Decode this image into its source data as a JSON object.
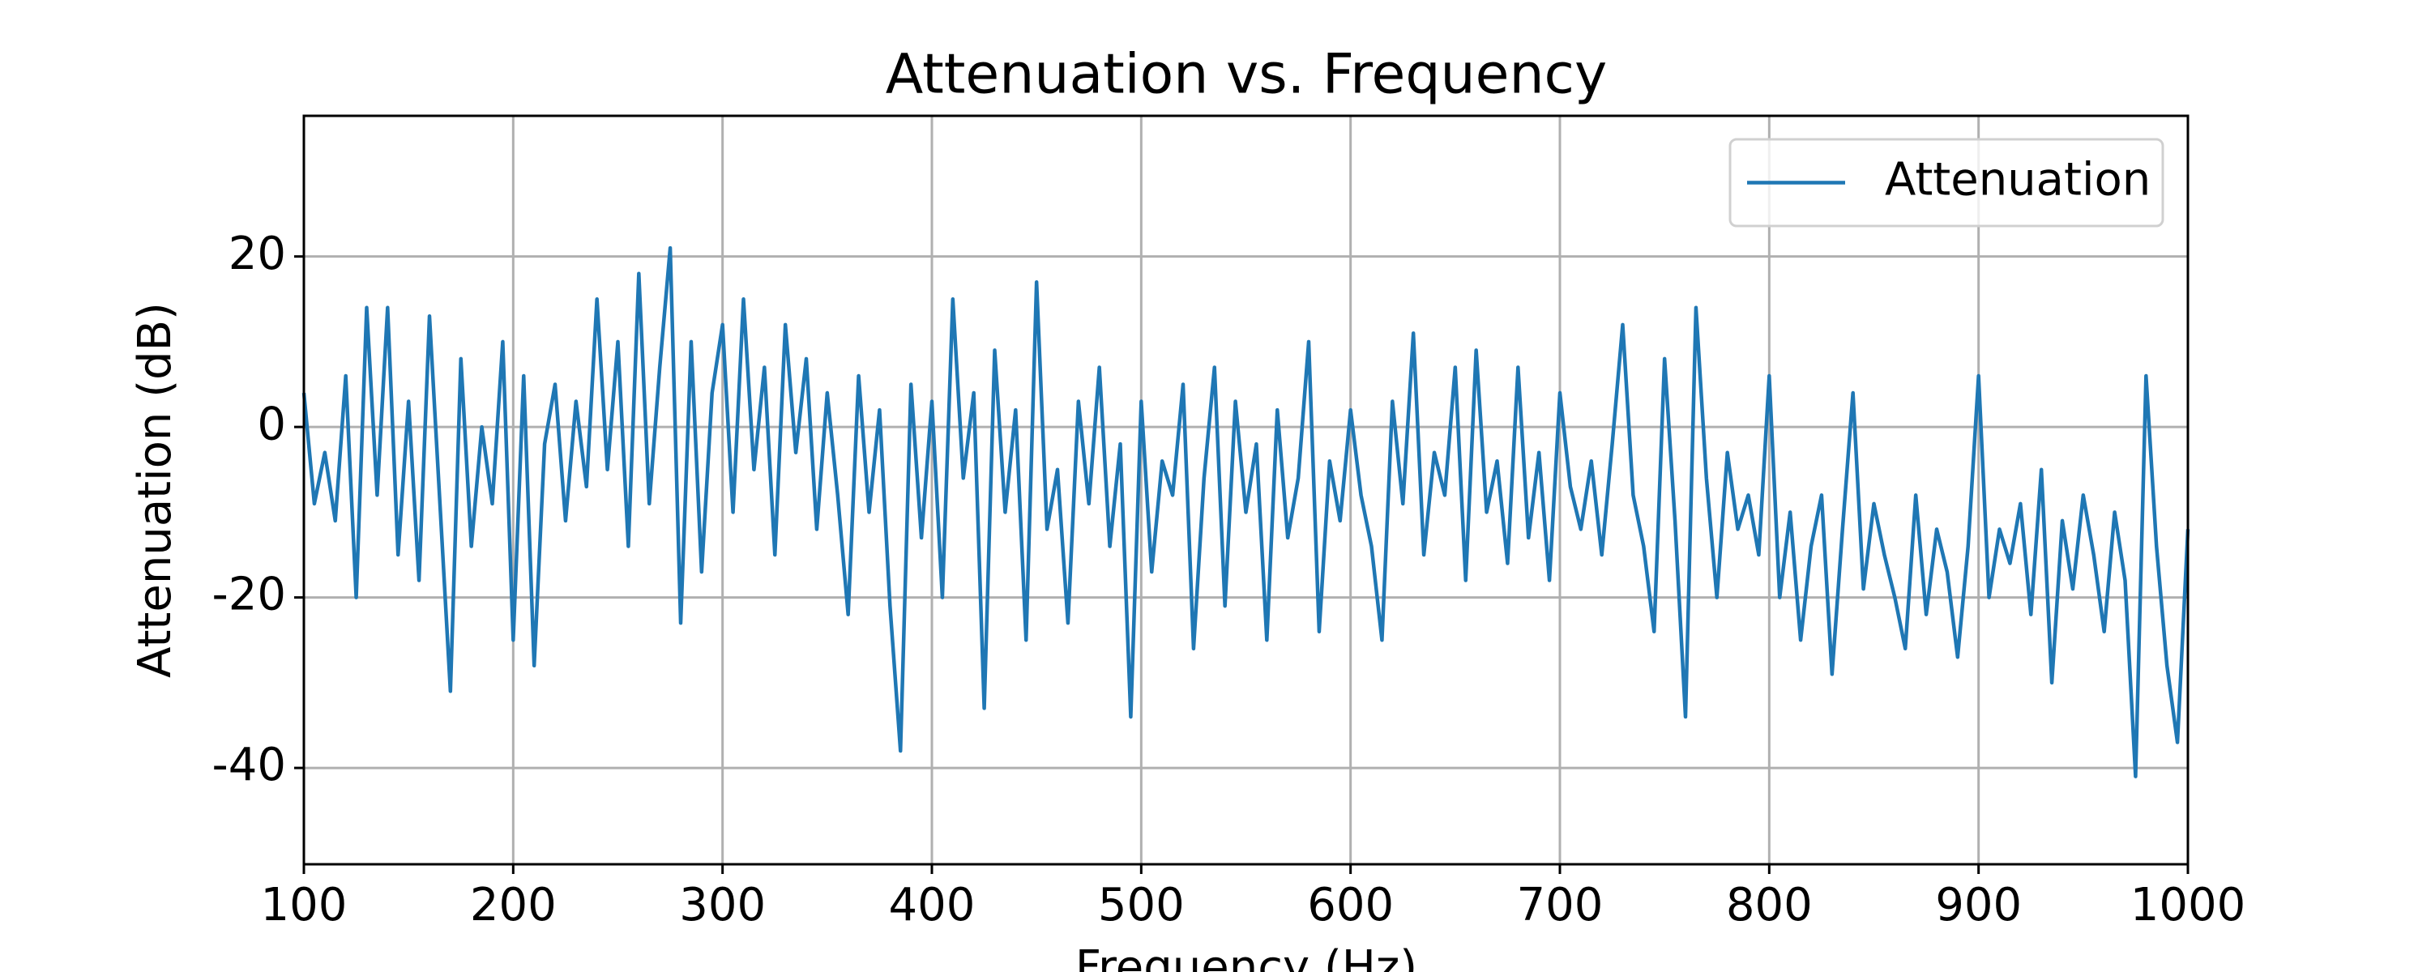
{
  "chart_data": {
    "type": "line",
    "title": "Attenuation vs. Frequency",
    "x_label": "Frequency (Hz)",
    "y_label": "Attenuation (dB)",
    "x": [
      100,
      105,
      110,
      115,
      120,
      125,
      130,
      135,
      140,
      145,
      150,
      155,
      160,
      165,
      170,
      175,
      180,
      185,
      190,
      195,
      200,
      205,
      210,
      215,
      220,
      225,
      230,
      235,
      240,
      245,
      250,
      255,
      260,
      265,
      270,
      275,
      280,
      285,
      290,
      295,
      300,
      305,
      310,
      315,
      320,
      325,
      330,
      335,
      340,
      345,
      350,
      355,
      360,
      365,
      370,
      375,
      380,
      385,
      390,
      395,
      400,
      405,
      410,
      415,
      420,
      425,
      430,
      435,
      440,
      445,
      450,
      455,
      460,
      465,
      470,
      475,
      480,
      485,
      490,
      495,
      500,
      505,
      510,
      515,
      520,
      525,
      530,
      535,
      540,
      545,
      550,
      555,
      560,
      565,
      570,
      575,
      580,
      585,
      590,
      595,
      600,
      605,
      610,
      615,
      620,
      625,
      630,
      635,
      640,
      645,
      650,
      655,
      660,
      665,
      670,
      675,
      680,
      685,
      690,
      695,
      700,
      705,
      710,
      715,
      720,
      725,
      730,
      735,
      740,
      745,
      750,
      755,
      760,
      765,
      770,
      775,
      780,
      785,
      790,
      795,
      800,
      805,
      810,
      815,
      820,
      825,
      830,
      835,
      840,
      845,
      850,
      855,
      860,
      865,
      870,
      875,
      880,
      885,
      890,
      895,
      900,
      905,
      910,
      915,
      920,
      925,
      930,
      935,
      940,
      945,
      950,
      955,
      960,
      965,
      970,
      975,
      980,
      985,
      990,
      995,
      1000
    ],
    "series": [
      {
        "name": "Attenuation",
        "color": "#1f77b4",
        "values": [
          4,
          -9,
          -3,
          -11,
          6,
          -20,
          14,
          -8,
          14,
          -15,
          3,
          -18,
          13,
          -9,
          -31,
          8,
          -14,
          0,
          -9,
          10,
          -25,
          6,
          -28,
          -2,
          5,
          -11,
          3,
          -7,
          15,
          -5,
          10,
          -14,
          18,
          -9,
          7,
          21,
          -23,
          10,
          -17,
          4,
          12,
          -10,
          15,
          -5,
          7,
          -15,
          12,
          -3,
          8,
          -12,
          4,
          -8,
          -22,
          6,
          -10,
          2,
          -21,
          -38,
          5,
          -13,
          3,
          -20,
          15,
          -6,
          4,
          -33,
          9,
          -10,
          2,
          -25,
          17,
          -12,
          -5,
          -23,
          3,
          -9,
          7,
          -14,
          -2,
          -34,
          3,
          -17,
          -4,
          -8,
          5,
          -26,
          -6,
          7,
          -21,
          3,
          -10,
          -2,
          -25,
          2,
          -13,
          -6,
          10,
          -24,
          -4,
          -11,
          2,
          -8,
          -14,
          -25,
          3,
          -9,
          11,
          -15,
          -3,
          -8,
          7,
          -18,
          9,
          -10,
          -4,
          -16,
          7,
          -13,
          -3,
          -18,
          4,
          -7,
          -12,
          -4,
          -15,
          -2,
          12,
          -8,
          -14,
          -24,
          8,
          -11,
          -34,
          14,
          -6,
          -20,
          -3,
          -12,
          -8,
          -15,
          6,
          -20,
          -10,
          -25,
          -14,
          -8,
          -29,
          -12,
          4,
          -19,
          -9,
          -15,
          -20,
          -26,
          -8,
          -22,
          -12,
          -17,
          -27,
          -14,
          6,
          -20,
          -12,
          -16,
          -9,
          -22,
          -5,
          -30,
          -11,
          -19,
          -8,
          -15,
          -24,
          -10,
          -18,
          -41,
          6,
          -14,
          -28,
          -37,
          -12
        ]
      }
    ],
    "xlim": [
      100,
      1000
    ],
    "ylim": [
      -51.3,
      36.5
    ],
    "xticks": [
      100,
      200,
      300,
      400,
      500,
      600,
      700,
      800,
      900,
      1000
    ],
    "yticks": [
      -40,
      -20,
      0,
      20
    ],
    "grid": true,
    "legend": "upper right"
  }
}
